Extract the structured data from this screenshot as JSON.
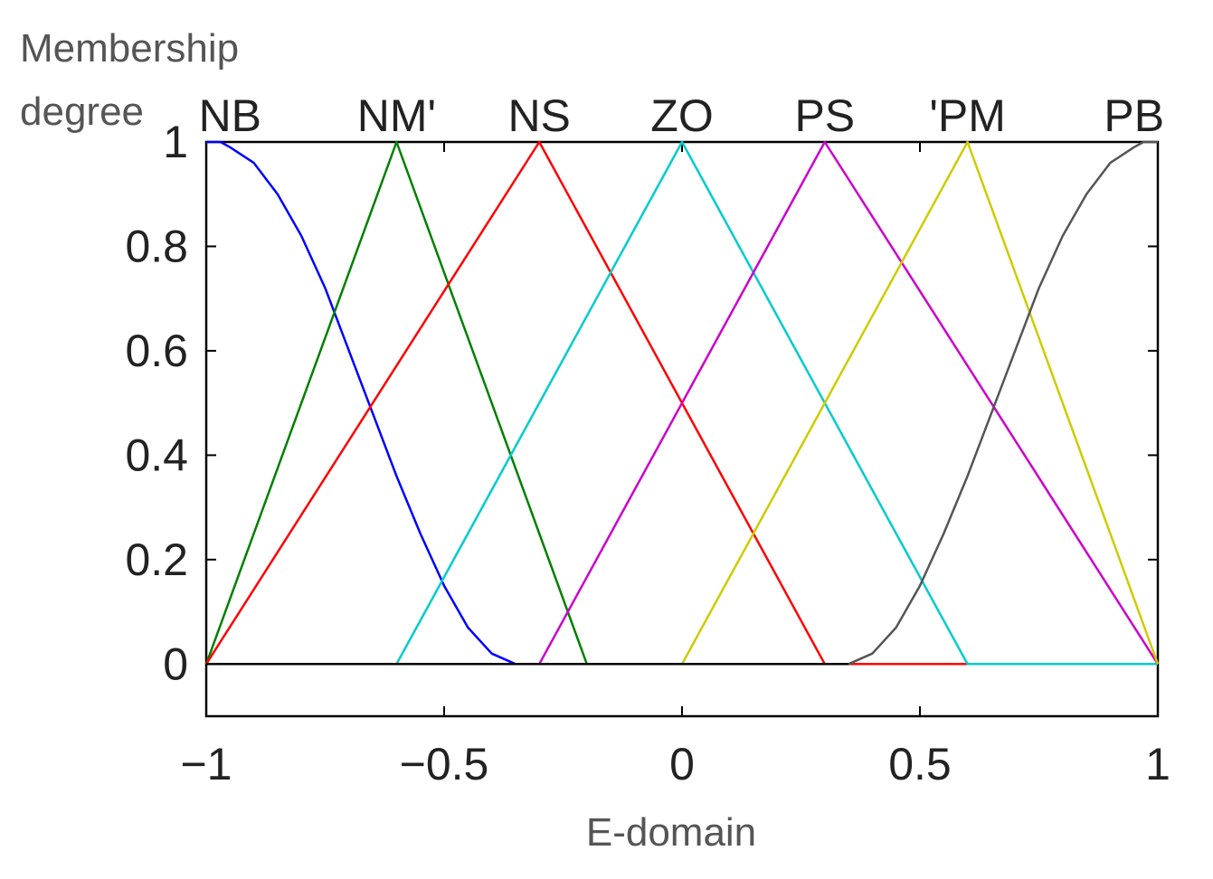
{
  "chart_data": {
    "type": "line",
    "title": "",
    "ylabel_lines": [
      "Membership",
      "degree"
    ],
    "xlabel": "E-domain",
    "xlim": [
      -1,
      1
    ],
    "ylim": [
      -0.1,
      1
    ],
    "xticks": [
      -1,
      -0.5,
      0,
      0.5,
      1
    ],
    "xtick_labels": [
      "−1",
      "−0.5",
      "0",
      "0.5",
      "1"
    ],
    "yticks": [
      0,
      0.2,
      0.4,
      0.6,
      0.8,
      1
    ],
    "ytick_labels": [
      "0",
      "0.2",
      "0.4",
      "0.6",
      "0.8",
      "1"
    ],
    "grid": false,
    "series": [
      {
        "name": "NB",
        "label_text": "NB",
        "label_x": -0.95,
        "color": "#0000ff",
        "x": [
          -1,
          -0.97,
          -0.95,
          -0.9,
          -0.85,
          -0.8,
          -0.75,
          -0.7,
          -0.65,
          -0.6,
          -0.55,
          -0.5,
          -0.45,
          -0.4,
          -0.35,
          1
        ],
        "y": [
          1,
          1,
          0.99,
          0.96,
          0.9,
          0.82,
          0.72,
          0.6,
          0.48,
          0.36,
          0.25,
          0.15,
          0.07,
          0.02,
          0,
          0
        ]
      },
      {
        "name": "NM",
        "label_text": "NM'",
        "label_x": -0.6,
        "color": "#008000",
        "x": [
          -1,
          -0.6,
          -0.2,
          1
        ],
        "y": [
          0,
          1,
          0,
          0
        ]
      },
      {
        "name": "NS",
        "label_text": "NS",
        "label_x": -0.3,
        "color": "#ff0000",
        "x": [
          -1,
          -0.3,
          0.3,
          1
        ],
        "y": [
          0,
          1,
          0,
          0
        ]
      },
      {
        "name": "ZO",
        "label_text": "ZO",
        "label_x": 0,
        "color": "#00cccc",
        "x": [
          -1,
          -0.6,
          0,
          0.6,
          1
        ],
        "y": [
          0,
          0,
          1,
          0,
          0
        ]
      },
      {
        "name": "PS",
        "label_text": "PS",
        "label_x": 0.3,
        "color": "#cc00cc",
        "x": [
          -1,
          -0.3,
          0.3,
          1
        ],
        "y": [
          0,
          0,
          1,
          0
        ]
      },
      {
        "name": "PM",
        "label_text": "'PM",
        "label_x": 0.6,
        "color": "#cccc00",
        "x": [
          -1,
          0,
          0.6,
          1
        ],
        "y": [
          0,
          0,
          1,
          0
        ]
      },
      {
        "name": "PB",
        "label_text": "PB",
        "label_x": 0.95,
        "color": "#555555",
        "x": [
          -1,
          0.35,
          0.4,
          0.45,
          0.5,
          0.55,
          0.6,
          0.65,
          0.7,
          0.75,
          0.8,
          0.85,
          0.9,
          0.95,
          0.97,
          1
        ],
        "y": [
          0,
          0,
          0.02,
          0.07,
          0.15,
          0.25,
          0.36,
          0.48,
          0.6,
          0.72,
          0.82,
          0.9,
          0.96,
          0.99,
          1,
          1
        ]
      }
    ]
  }
}
